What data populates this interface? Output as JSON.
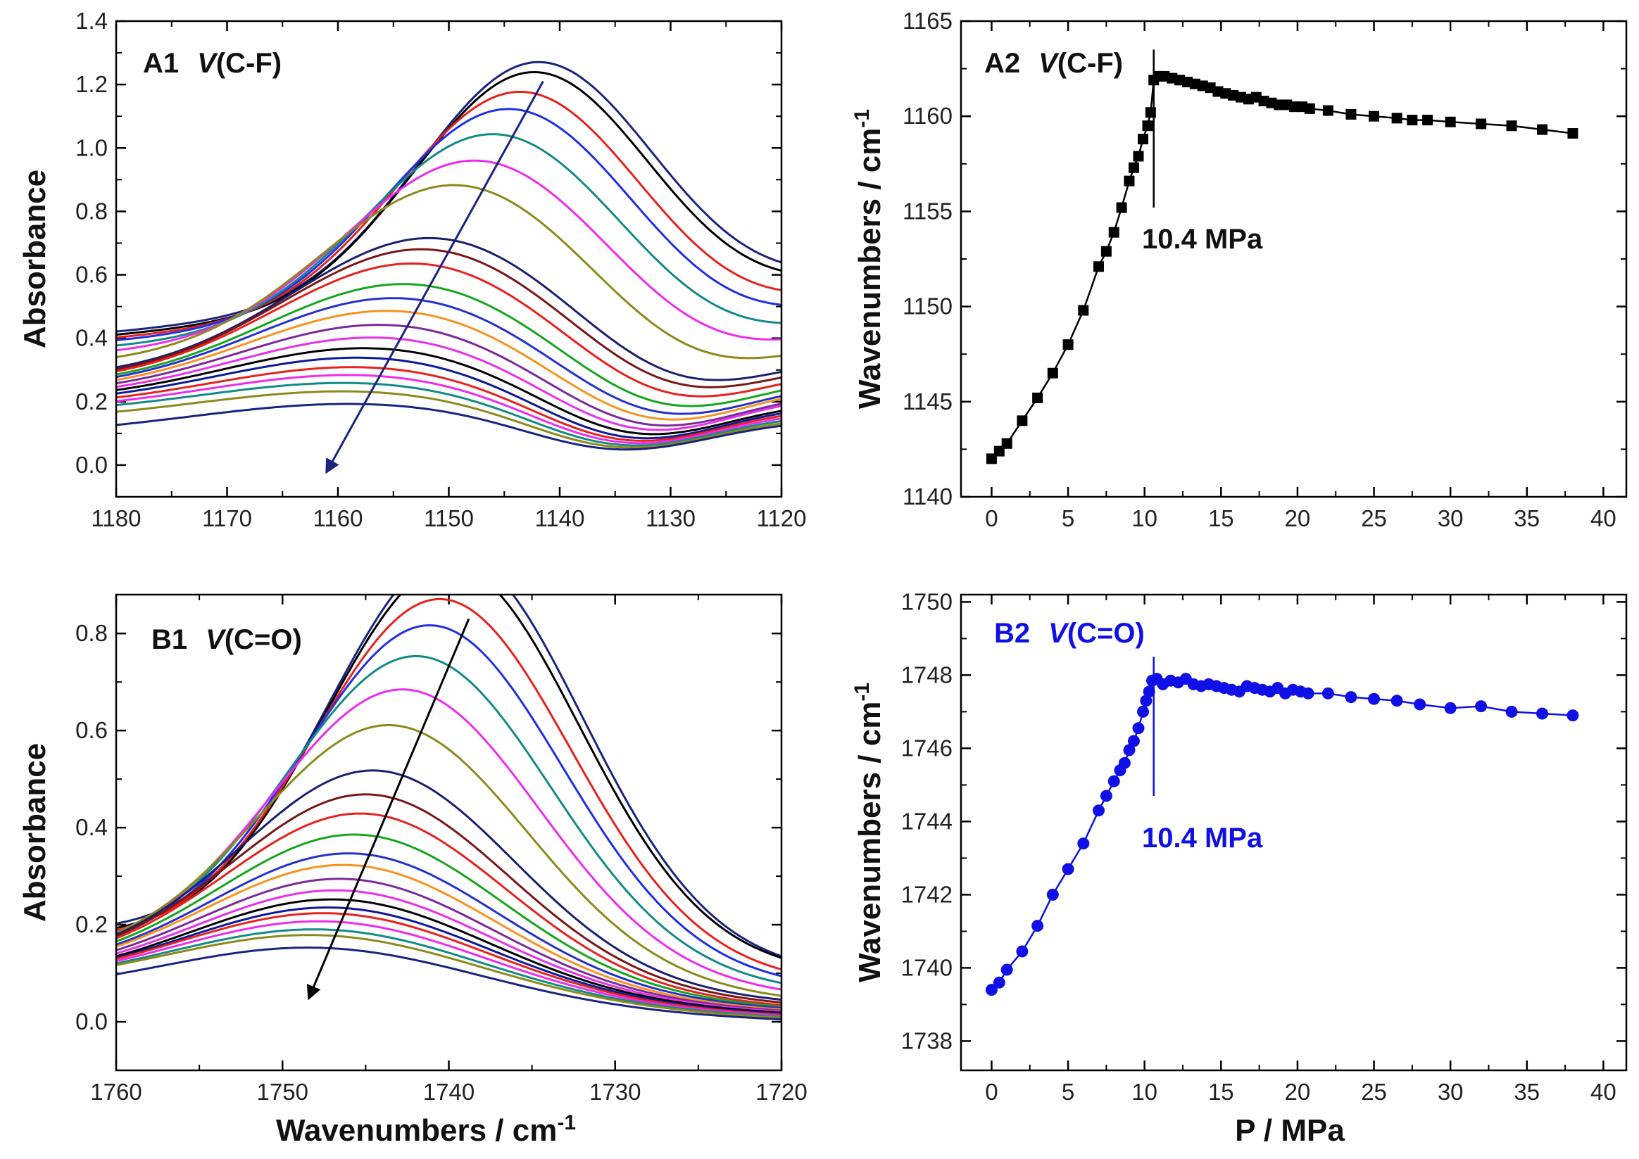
{
  "figure": {
    "ylabel_spectra": "Absorbance",
    "ylabel_shift": "Wavenumbers / cm",
    "xlabel_spectra": "Wavenumbers / cm",
    "xlabel_shift": "P / MPa",
    "unit_superscript": "-1"
  },
  "chart_data": [
    {
      "id": "A1",
      "type": "line",
      "title_prefix": "A1",
      "title_symbol": "V",
      "title_suffix": "(C-F)",
      "xlabel": "",
      "ylabel": "Absorbance",
      "xlim": [
        1180,
        1120
      ],
      "ylim": [
        -0.1,
        1.4
      ],
      "xticks": [
        1180,
        1170,
        1160,
        1150,
        1140,
        1130,
        1120
      ],
      "yticks": [
        0.0,
        0.2,
        0.4,
        0.6,
        0.8,
        1.0,
        1.2,
        1.4
      ],
      "ytick_labels": [
        "0.0",
        "0.2",
        "0.4",
        "0.6",
        "0.8",
        "1.0",
        "1.2",
        "1.4"
      ],
      "model": "gaussian peak on sloping baseline, one curve per pressure step",
      "arrow": {
        "from": [
          1141.5,
          1.21
        ],
        "to": [
          1161,
          -0.02
        ],
        "color": "#1a237e"
      },
      "series": [
        {
          "name": "s1",
          "color": "#1a237e",
          "peak": 1142.2,
          "amp": 0.74,
          "left": 0.42,
          "right": 0.6,
          "min": 0.545,
          "min_at": 1123.6,
          "width": 10.5
        },
        {
          "name": "s2",
          "color": "#000000",
          "peak": 1142.6,
          "amp": 0.72,
          "left": 0.41,
          "right": 0.59,
          "min": 0.525,
          "min_at": 1123.8,
          "width": 10.5
        },
        {
          "name": "s3",
          "color": "#e8211d",
          "peak": 1143.8,
          "amp": 0.69,
          "left": 0.4,
          "right": 0.55,
          "min": 0.47,
          "min_at": 1124.4,
          "width": 10.8
        },
        {
          "name": "s4",
          "color": "#1d2fe8",
          "peak": 1144.8,
          "amp": 0.66,
          "left": 0.39,
          "right": 0.52,
          "min": 0.43,
          "min_at": 1124.8,
          "width": 11.0
        },
        {
          "name": "s5",
          "color": "#128a86",
          "peak": 1146.2,
          "amp": 0.62,
          "left": 0.37,
          "right": 0.47,
          "min": 0.38,
          "min_at": 1125.5,
          "width": 11.3
        },
        {
          "name": "s6",
          "color": "#ee2bee",
          "peak": 1147.8,
          "amp": 0.57,
          "left": 0.35,
          "right": 0.43,
          "min": 0.33,
          "min_at": 1126.5,
          "width": 11.6
        },
        {
          "name": "s7",
          "color": "#8c8a1a",
          "peak": 1149.6,
          "amp": 0.53,
          "left": 0.32,
          "right": 0.39,
          "min": 0.27,
          "min_at": 1127.8,
          "width": 11.9
        },
        {
          "name": "s8",
          "color": "#1a1f6e",
          "peak": 1151.8,
          "amp": 0.41,
          "left": 0.28,
          "right": 0.34,
          "min": 0.21,
          "min_at": 1129.5,
          "width": 12.2
        },
        {
          "name": "s9",
          "color": "#7a1616",
          "peak": 1152.5,
          "amp": 0.39,
          "left": 0.27,
          "right": 0.32,
          "min": 0.19,
          "min_at": 1130.0,
          "width": 12.3
        },
        {
          "name": "s10",
          "color": "#e8211d",
          "peak": 1153.3,
          "amp": 0.36,
          "left": 0.26,
          "right": 0.3,
          "min": 0.165,
          "min_at": 1130.5,
          "width": 12.4
        },
        {
          "name": "s11",
          "color": "#16a51f",
          "peak": 1154.0,
          "amp": 0.31,
          "left": 0.25,
          "right": 0.28,
          "min": 0.14,
          "min_at": 1131.0,
          "width": 12.5
        },
        {
          "name": "s12",
          "color": "#2431cf",
          "peak": 1154.8,
          "amp": 0.28,
          "left": 0.24,
          "right": 0.26,
          "min": 0.12,
          "min_at": 1131.5,
          "width": 12.6
        },
        {
          "name": "s13",
          "color": "#f7931e",
          "peak": 1155.4,
          "amp": 0.25,
          "left": 0.23,
          "right": 0.25,
          "min": 0.105,
          "min_at": 1132.0,
          "width": 12.7
        },
        {
          "name": "s14",
          "color": "#7b2a9a",
          "peak": 1156.0,
          "amp": 0.22,
          "left": 0.22,
          "right": 0.23,
          "min": 0.09,
          "min_at": 1132.5,
          "width": 12.8
        },
        {
          "name": "s15",
          "color": "#e830e8",
          "peak": 1156.6,
          "amp": 0.19,
          "left": 0.21,
          "right": 0.22,
          "min": 0.08,
          "min_at": 1133.0,
          "width": 12.9
        },
        {
          "name": "s16",
          "color": "#000000",
          "peak": 1157.2,
          "amp": 0.17,
          "left": 0.2,
          "right": 0.2,
          "min": 0.07,
          "min_at": 1133.4,
          "width": 13.0
        },
        {
          "name": "s17",
          "color": "#0b1a9a",
          "peak": 1157.8,
          "amp": 0.15,
          "left": 0.19,
          "right": 0.19,
          "min": 0.06,
          "min_at": 1133.8,
          "width": 13.1
        },
        {
          "name": "s18",
          "color": "#e8211d",
          "peak": 1158.2,
          "amp": 0.13,
          "left": 0.18,
          "right": 0.18,
          "min": 0.055,
          "min_at": 1134.0,
          "width": 13.2
        },
        {
          "name": "s19",
          "color": "#ee2bee",
          "peak": 1158.6,
          "amp": 0.115,
          "left": 0.17,
          "right": 0.17,
          "min": 0.05,
          "min_at": 1134.2,
          "width": 13.3
        },
        {
          "name": "s20",
          "color": "#128a86",
          "peak": 1159.0,
          "amp": 0.1,
          "left": 0.16,
          "right": 0.16,
          "min": 0.045,
          "min_at": 1134.4,
          "width": 13.4
        },
        {
          "name": "s21",
          "color": "#8c8a1a",
          "peak": 1159.4,
          "amp": 0.09,
          "left": 0.14,
          "right": 0.15,
          "min": 0.04,
          "min_at": 1134.6,
          "width": 13.5
        },
        {
          "name": "s22",
          "color": "#1a237e",
          "peak": 1159.8,
          "amp": 0.08,
          "left": 0.1,
          "right": 0.14,
          "min": 0.035,
          "min_at": 1134.8,
          "width": 13.6
        }
      ]
    },
    {
      "id": "A2",
      "type": "line",
      "title_prefix": "A2",
      "title_symbol": "V",
      "title_suffix": "(C-F)",
      "color": "#000000",
      "marker": "square",
      "xlabel": "",
      "ylabel": "Wavenumbers / cm-1",
      "xlim": [
        -2,
        41.5
      ],
      "ylim": [
        1140,
        1165
      ],
      "xticks": [
        0,
        5,
        10,
        15,
        20,
        25,
        30,
        35,
        40
      ],
      "yticks": [
        1140,
        1145,
        1150,
        1155,
        1160,
        1165
      ],
      "x": [
        0,
        0.5,
        1,
        2,
        3,
        4,
        5,
        6,
        7,
        7.5,
        8,
        8.5,
        9,
        9.3,
        9.6,
        9.9,
        10.2,
        10.4,
        10.6,
        10.9,
        11.3,
        11.8,
        12.3,
        12.8,
        13.3,
        13.8,
        14.3,
        14.8,
        15.3,
        15.8,
        16.3,
        16.8,
        17.3,
        17.8,
        18.3,
        18.8,
        19.3,
        19.8,
        20.3,
        20.8,
        22,
        23.5,
        25,
        26.5,
        27.5,
        28.5,
        30,
        32,
        34,
        36,
        38
      ],
      "y": [
        1142.0,
        1142.4,
        1142.8,
        1144.0,
        1145.2,
        1146.5,
        1148.0,
        1149.8,
        1152.1,
        1152.9,
        1153.9,
        1155.2,
        1156.6,
        1157.3,
        1157.9,
        1158.8,
        1159.5,
        1160.2,
        1161.9,
        1162.1,
        1162.1,
        1162.0,
        1161.9,
        1161.8,
        1161.7,
        1161.6,
        1161.5,
        1161.3,
        1161.2,
        1161.1,
        1161.0,
        1160.9,
        1161.0,
        1160.8,
        1160.7,
        1160.6,
        1160.6,
        1160.5,
        1160.5,
        1160.4,
        1160.3,
        1160.1,
        1160.0,
        1159.9,
        1159.8,
        1159.8,
        1159.7,
        1159.6,
        1159.5,
        1159.3,
        1159.1
      ],
      "marker_line": {
        "x": 10.6,
        "y_from": 1155.2,
        "y_to": 1163.5
      },
      "annotation": "10.4 MPa"
    },
    {
      "id": "B1",
      "type": "line",
      "title_prefix": "B1",
      "title_symbol": "V",
      "title_suffix": "(C=O)",
      "xlabel": "Wavenumbers / cm-1",
      "ylabel": "Absorbance",
      "xlim": [
        1760,
        1720
      ],
      "ylim": [
        -0.1,
        0.88
      ],
      "xticks": [
        1760,
        1750,
        1740,
        1730,
        1720
      ],
      "yticks": [
        0.0,
        0.2,
        0.4,
        0.6,
        0.8
      ],
      "ytick_labels": [
        "0.0",
        "0.2",
        "0.4",
        "0.6",
        "0.8"
      ],
      "model": "gaussian peak on sloping baseline, one curve per pressure step",
      "arrow": {
        "from": [
          1738.8,
          0.83
        ],
        "to": [
          1748.4,
          0.05
        ],
        "color": "#000000"
      },
      "series": [
        {
          "name": "s1",
          "color": "#1a237e",
          "peak": 1739.6,
          "amp": 0.82,
          "left": 0.18,
          "right": 0.115,
          "min": 0.1,
          "min_at": 1717,
          "width": 7.6
        },
        {
          "name": "s2",
          "color": "#000000",
          "peak": 1739.8,
          "amp": 0.8,
          "left": 0.17,
          "right": 0.11,
          "min": 0.1,
          "min_at": 1717,
          "width": 7.6
        },
        {
          "name": "s3",
          "color": "#e8211d",
          "peak": 1740.4,
          "amp": 0.745,
          "left": 0.16,
          "right": 0.09,
          "min": 0.08,
          "min_at": 1717,
          "width": 7.7
        },
        {
          "name": "s4",
          "color": "#1d2fe8",
          "peak": 1741.0,
          "amp": 0.7,
          "left": 0.15,
          "right": 0.08,
          "min": 0.07,
          "min_at": 1717,
          "width": 7.8
        },
        {
          "name": "s5",
          "color": "#128a86",
          "peak": 1741.8,
          "amp": 0.645,
          "left": 0.14,
          "right": 0.07,
          "min": 0.06,
          "min_at": 1717,
          "width": 7.9
        },
        {
          "name": "s6",
          "color": "#ee2bee",
          "peak": 1742.6,
          "amp": 0.585,
          "left": 0.13,
          "right": 0.06,
          "min": 0.05,
          "min_at": 1717,
          "width": 8.0
        },
        {
          "name": "s7",
          "color": "#8c8a1a",
          "peak": 1743.4,
          "amp": 0.52,
          "left": 0.12,
          "right": 0.05,
          "min": 0.04,
          "min_at": 1717,
          "width": 8.1
        },
        {
          "name": "s8",
          "color": "#1a1f6e",
          "peak": 1744.3,
          "amp": 0.435,
          "left": 0.11,
          "right": 0.04,
          "min": 0.035,
          "min_at": 1717,
          "width": 8.2
        },
        {
          "name": "s9",
          "color": "#7a1616",
          "peak": 1744.7,
          "amp": 0.39,
          "left": 0.105,
          "right": 0.035,
          "min": 0.03,
          "min_at": 1717,
          "width": 8.3
        },
        {
          "name": "s10",
          "color": "#e8211d",
          "peak": 1745.0,
          "amp": 0.355,
          "left": 0.1,
          "right": 0.03,
          "min": 0.025,
          "min_at": 1717,
          "width": 8.4
        },
        {
          "name": "s11",
          "color": "#16a51f",
          "peak": 1745.3,
          "amp": 0.315,
          "left": 0.095,
          "right": 0.028,
          "min": 0.022,
          "min_at": 1717,
          "width": 8.5
        },
        {
          "name": "s12",
          "color": "#2431cf",
          "peak": 1745.6,
          "amp": 0.28,
          "left": 0.09,
          "right": 0.025,
          "min": 0.02,
          "min_at": 1717,
          "width": 8.6
        },
        {
          "name": "s13",
          "color": "#f7931e",
          "peak": 1745.9,
          "amp": 0.26,
          "left": 0.085,
          "right": 0.022,
          "min": 0.018,
          "min_at": 1717,
          "width": 8.7
        },
        {
          "name": "s14",
          "color": "#7b2a9a",
          "peak": 1746.1,
          "amp": 0.235,
          "left": 0.08,
          "right": 0.02,
          "min": 0.016,
          "min_at": 1717,
          "width": 8.8
        },
        {
          "name": "s15",
          "color": "#e830e8",
          "peak": 1746.3,
          "amp": 0.215,
          "left": 0.075,
          "right": 0.018,
          "min": 0.014,
          "min_at": 1717,
          "width": 8.9
        },
        {
          "name": "s16",
          "color": "#000000",
          "peak": 1746.5,
          "amp": 0.2,
          "left": 0.07,
          "right": 0.016,
          "min": 0.012,
          "min_at": 1717,
          "width": 9.0
        },
        {
          "name": "s17",
          "color": "#0b1a9a",
          "peak": 1746.7,
          "amp": 0.185,
          "left": 0.068,
          "right": 0.014,
          "min": 0.01,
          "min_at": 1717,
          "width": 9.1
        },
        {
          "name": "s18",
          "color": "#e8211d",
          "peak": 1746.9,
          "amp": 0.175,
          "left": 0.066,
          "right": 0.012,
          "min": 0.008,
          "min_at": 1717,
          "width": 9.2
        },
        {
          "name": "s19",
          "color": "#ee2bee",
          "peak": 1747.1,
          "amp": 0.16,
          "left": 0.064,
          "right": 0.01,
          "min": 0.006,
          "min_at": 1717,
          "width": 9.3
        },
        {
          "name": "s20",
          "color": "#128a86",
          "peak": 1747.3,
          "amp": 0.145,
          "left": 0.062,
          "right": 0.008,
          "min": 0.004,
          "min_at": 1717,
          "width": 9.4
        },
        {
          "name": "s21",
          "color": "#8c8a1a",
          "peak": 1747.5,
          "amp": 0.135,
          "left": 0.06,
          "right": 0.006,
          "min": 0.002,
          "min_at": 1717,
          "width": 9.5
        },
        {
          "name": "s22",
          "color": "#1a237e",
          "peak": 1747.7,
          "amp": 0.12,
          "left": 0.045,
          "right": 0.004,
          "min": 0.0,
          "min_at": 1717,
          "width": 9.6
        }
      ]
    },
    {
      "id": "B2",
      "type": "line",
      "title_prefix": "B2",
      "title_symbol": "V",
      "title_suffix": "(C=O)",
      "color": "#1010e6",
      "marker": "circle",
      "xlabel": "P / MPa",
      "ylabel": "Wavenumbers / cm-1",
      "xlim": [
        -2,
        41.5
      ],
      "ylim": [
        1737.2,
        1750.2
      ],
      "xticks": [
        0,
        5,
        10,
        15,
        20,
        25,
        30,
        35,
        40
      ],
      "yticks": [
        1738,
        1740,
        1742,
        1744,
        1746,
        1748,
        1750
      ],
      "x": [
        0,
        0.5,
        1,
        2,
        3,
        4,
        5,
        6,
        7,
        7.5,
        8,
        8.4,
        8.7,
        9,
        9.3,
        9.6,
        9.9,
        10.1,
        10.3,
        10.5,
        10.8,
        11.2,
        11.7,
        12.2,
        12.7,
        13.2,
        13.7,
        14.2,
        14.7,
        15.2,
        15.7,
        16.2,
        16.7,
        17.2,
        17.7,
        18.2,
        18.7,
        19.2,
        19.7,
        20.2,
        20.7,
        22,
        23.5,
        25,
        26.5,
        28,
        30,
        32,
        34,
        36,
        38
      ],
      "y": [
        1739.4,
        1739.6,
        1739.95,
        1740.45,
        1741.15,
        1742.0,
        1742.7,
        1743.4,
        1744.3,
        1744.7,
        1745.1,
        1745.4,
        1745.6,
        1745.95,
        1746.2,
        1746.55,
        1747.0,
        1747.3,
        1747.55,
        1747.85,
        1747.9,
        1747.75,
        1747.85,
        1747.8,
        1747.9,
        1747.75,
        1747.7,
        1747.75,
        1747.7,
        1747.65,
        1747.6,
        1747.55,
        1747.7,
        1747.65,
        1747.6,
        1747.55,
        1747.65,
        1747.5,
        1747.6,
        1747.55,
        1747.5,
        1747.5,
        1747.4,
        1747.35,
        1747.3,
        1747.2,
        1747.1,
        1747.15,
        1747.0,
        1746.95,
        1746.9
      ],
      "marker_line": {
        "x": 10.6,
        "y_from": 1744.7,
        "y_to": 1748.5
      },
      "annotation": "10.4 MPa"
    }
  ]
}
